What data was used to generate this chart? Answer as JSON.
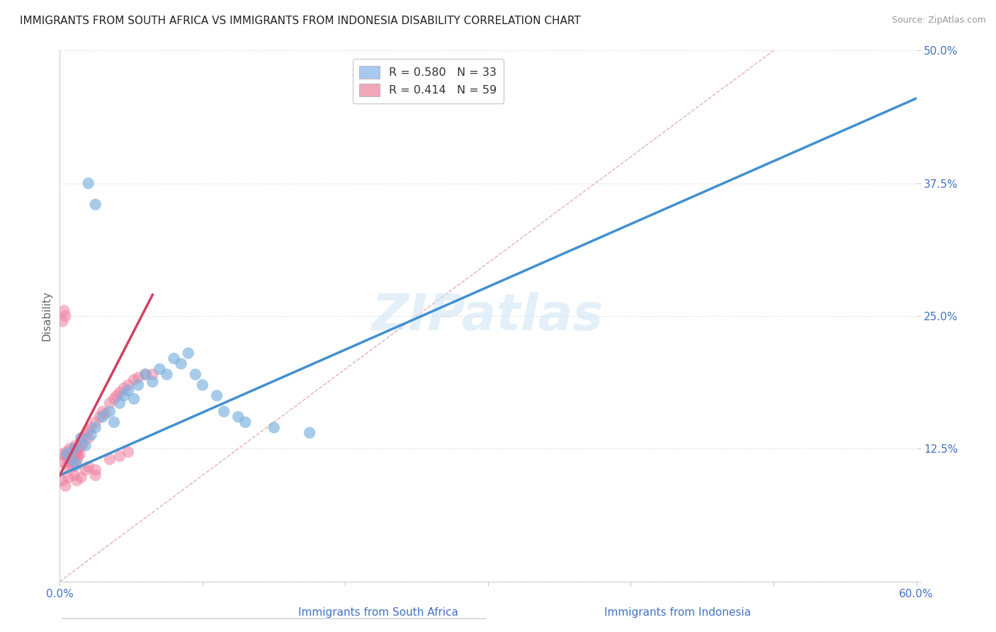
{
  "title": "IMMIGRANTS FROM SOUTH AFRICA VS IMMIGRANTS FROM INDONESIA DISABILITY CORRELATION CHART",
  "source": "Source: ZipAtlas.com",
  "xlabel_bottom_left": "Immigrants from South Africa",
  "xlabel_bottom_right": "Immigrants from Indonesia",
  "ylabel": "Disability",
  "xmin": 0.0,
  "xmax": 0.6,
  "ymin": 0.0,
  "ymax": 0.5,
  "yticks": [
    0.0,
    0.125,
    0.25,
    0.375,
    0.5
  ],
  "ytick_labels": [
    "",
    "12.5%",
    "25.0%",
    "37.5%",
    "50.0%"
  ],
  "xtick_vals": [
    0.0,
    0.1,
    0.2,
    0.3,
    0.4,
    0.5,
    0.6
  ],
  "xtick_labels": [
    "0.0%",
    "",
    "",
    "",
    "",
    "",
    "60.0%"
  ],
  "watermark": "ZIPatlas",
  "legend_entries": [
    {
      "label": "R = 0.580   N = 33",
      "color": "#a8c8f0"
    },
    {
      "label": "R = 0.414   N = 59",
      "color": "#f0a8b8"
    }
  ],
  "scatter_south_africa": {
    "color": "#7ab0e0",
    "alpha": 0.65,
    "points": [
      [
        0.005,
        0.12
      ],
      [
        0.008,
        0.115
      ],
      [
        0.01,
        0.125
      ],
      [
        0.012,
        0.11
      ],
      [
        0.015,
        0.135
      ],
      [
        0.018,
        0.128
      ],
      [
        0.022,
        0.138
      ],
      [
        0.025,
        0.145
      ],
      [
        0.03,
        0.155
      ],
      [
        0.035,
        0.16
      ],
      [
        0.038,
        0.15
      ],
      [
        0.042,
        0.168
      ],
      [
        0.045,
        0.175
      ],
      [
        0.048,
        0.18
      ],
      [
        0.052,
        0.172
      ],
      [
        0.055,
        0.185
      ],
      [
        0.06,
        0.195
      ],
      [
        0.065,
        0.188
      ],
      [
        0.07,
        0.2
      ],
      [
        0.075,
        0.195
      ],
      [
        0.08,
        0.21
      ],
      [
        0.085,
        0.205
      ],
      [
        0.09,
        0.215
      ],
      [
        0.095,
        0.195
      ],
      [
        0.1,
        0.185
      ],
      [
        0.11,
        0.175
      ],
      [
        0.115,
        0.16
      ],
      [
        0.125,
        0.155
      ],
      [
        0.13,
        0.15
      ],
      [
        0.15,
        0.145
      ],
      [
        0.175,
        0.14
      ],
      [
        0.02,
        0.375
      ],
      [
        0.025,
        0.355
      ]
    ]
  },
  "scatter_indonesia": {
    "color": "#f080a0",
    "alpha": 0.55,
    "points": [
      [
        0.002,
        0.12
      ],
      [
        0.003,
        0.112
      ],
      [
        0.004,
        0.118
      ],
      [
        0.005,
        0.108
      ],
      [
        0.005,
        0.122
      ],
      [
        0.006,
        0.115
      ],
      [
        0.007,
        0.118
      ],
      [
        0.007,
        0.125
      ],
      [
        0.008,
        0.112
      ],
      [
        0.008,
        0.12
      ],
      [
        0.009,
        0.115
      ],
      [
        0.009,
        0.108
      ],
      [
        0.01,
        0.118
      ],
      [
        0.01,
        0.125
      ],
      [
        0.01,
        0.112
      ],
      [
        0.011,
        0.12
      ],
      [
        0.011,
        0.128
      ],
      [
        0.012,
        0.115
      ],
      [
        0.012,
        0.122
      ],
      [
        0.013,
        0.118
      ],
      [
        0.013,
        0.125
      ],
      [
        0.014,
        0.12
      ],
      [
        0.015,
        0.128
      ],
      [
        0.015,
        0.135
      ],
      [
        0.016,
        0.13
      ],
      [
        0.018,
        0.138
      ],
      [
        0.02,
        0.142
      ],
      [
        0.02,
        0.135
      ],
      [
        0.022,
        0.145
      ],
      [
        0.025,
        0.15
      ],
      [
        0.028,
        0.155
      ],
      [
        0.03,
        0.16
      ],
      [
        0.032,
        0.158
      ],
      [
        0.035,
        0.168
      ],
      [
        0.038,
        0.172
      ],
      [
        0.04,
        0.175
      ],
      [
        0.042,
        0.178
      ],
      [
        0.045,
        0.182
      ],
      [
        0.048,
        0.185
      ],
      [
        0.052,
        0.19
      ],
      [
        0.055,
        0.192
      ],
      [
        0.06,
        0.195
      ],
      [
        0.065,
        0.195
      ],
      [
        0.002,
        0.245
      ],
      [
        0.003,
        0.255
      ],
      [
        0.004,
        0.25
      ],
      [
        0.002,
        0.095
      ],
      [
        0.004,
        0.09
      ],
      [
        0.006,
        0.098
      ],
      [
        0.02,
        0.108
      ],
      [
        0.025,
        0.105
      ],
      [
        0.025,
        0.1
      ],
      [
        0.035,
        0.115
      ],
      [
        0.042,
        0.118
      ],
      [
        0.048,
        0.122
      ],
      [
        0.01,
        0.1
      ],
      [
        0.012,
        0.095
      ],
      [
        0.015,
        0.098
      ],
      [
        0.018,
        0.105
      ]
    ]
  },
  "regression_south_africa": {
    "color": "#4090d0",
    "linewidth": 2.5,
    "x": [
      0.0,
      0.6
    ],
    "y": [
      0.1,
      0.455
    ]
  },
  "regression_indonesia": {
    "color": "#d04060",
    "linewidth": 2.5,
    "x": [
      0.0,
      0.065
    ],
    "y": [
      0.1,
      0.27
    ]
  },
  "diagonal_ref": {
    "color": "#e8b0b0",
    "linestyle": "--",
    "linewidth": 1.0,
    "x": [
      0.0,
      0.5
    ],
    "y": [
      0.0,
      0.5
    ]
  },
  "grid_color": "#e8e8e8",
  "grid_linestyle": "--",
  "background_color": "#ffffff",
  "title_fontsize": 11,
  "source_fontsize": 9,
  "tick_label_color": "#4472c4",
  "ylabel_color": "#666666",
  "ylabel_fontsize": 11
}
